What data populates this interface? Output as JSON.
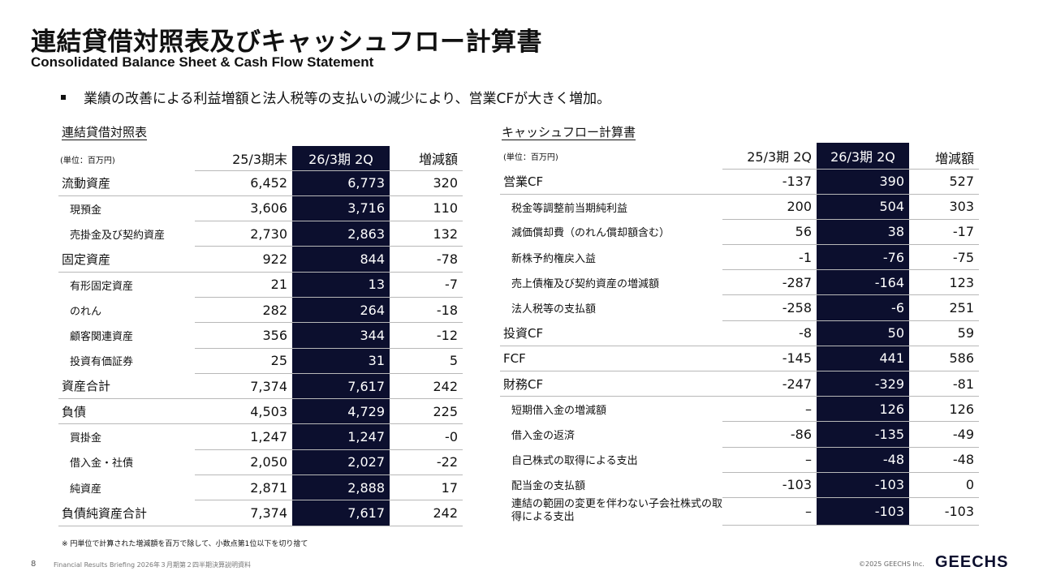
{
  "title_jp": "連結貸借対照表及びキャッシュフロー計算書",
  "title_en": "Consolidated Balance Sheet & Cash Flow Statement",
  "bullet": "業績の改善による利益増額と法人税等の支払いの減少により、営業CFが大きく増加。",
  "bs": {
    "title": "連結貸借対照表",
    "unit": "(単位：百万円)",
    "headers": [
      "25/3期末",
      "26/3期 2Q",
      "増減額"
    ],
    "rows": [
      {
        "label": "流動資産",
        "indent": false,
        "values": [
          "6,452",
          "6,773",
          "320"
        ]
      },
      {
        "label": "現預金",
        "indent": true,
        "values": [
          "3,606",
          "3,716",
          "110"
        ]
      },
      {
        "label": "売掛金及び契約資産",
        "indent": true,
        "values": [
          "2,730",
          "2,863",
          "132"
        ]
      },
      {
        "label": "固定資産",
        "indent": false,
        "values": [
          "922",
          "844",
          "-78"
        ]
      },
      {
        "label": "有形固定資産",
        "indent": true,
        "values": [
          "21",
          "13",
          "-7"
        ]
      },
      {
        "label": "のれん",
        "indent": true,
        "values": [
          "282",
          "264",
          "-18"
        ]
      },
      {
        "label": "顧客関連資産",
        "indent": true,
        "values": [
          "356",
          "344",
          "-12"
        ]
      },
      {
        "label": "投資有価証券",
        "indent": true,
        "values": [
          "25",
          "31",
          "5"
        ]
      },
      {
        "label": "資産合計",
        "indent": false,
        "values": [
          "7,374",
          "7,617",
          "242"
        ]
      },
      {
        "label": "負債",
        "indent": false,
        "values": [
          "4,503",
          "4,729",
          "225"
        ]
      },
      {
        "label": "買掛金",
        "indent": true,
        "values": [
          "1,247",
          "1,247",
          "-0"
        ]
      },
      {
        "label": "借入金・社債",
        "indent": true,
        "values": [
          "2,050",
          "2,027",
          "-22"
        ]
      },
      {
        "label": "純資産",
        "indent": true,
        "values": [
          "2,871",
          "2,888",
          "17"
        ]
      },
      {
        "label": "負債純資産合計",
        "indent": false,
        "values": [
          "7,374",
          "7,617",
          "242"
        ]
      }
    ]
  },
  "cf": {
    "title": "キャッシュフロー計算書",
    "unit": "(単位：百万円)",
    "headers": [
      "25/3期 2Q",
      "26/3期 2Q",
      "増減額"
    ],
    "rows": [
      {
        "label": "営業CF",
        "indent": false,
        "values": [
          "-137",
          "390",
          "527"
        ]
      },
      {
        "label": "税金等調整前当期純利益",
        "indent": true,
        "values": [
          "200",
          "504",
          "303"
        ]
      },
      {
        "label": "減価償却費（のれん償却額含む）",
        "indent": true,
        "values": [
          "56",
          "38",
          "-17"
        ]
      },
      {
        "label": "新株予約権戻入益",
        "indent": true,
        "values": [
          "-1",
          "-76",
          "-75"
        ]
      },
      {
        "label": "売上債権及び契約資産の増減額",
        "indent": true,
        "values": [
          "-287",
          "-164",
          "123"
        ]
      },
      {
        "label": "法人税等の支払額",
        "indent": true,
        "values": [
          "-258",
          "-6",
          "251"
        ]
      },
      {
        "label": "投資CF",
        "indent": false,
        "values": [
          "-8",
          "50",
          "59"
        ]
      },
      {
        "label": "FCF",
        "indent": false,
        "values": [
          "-145",
          "441",
          "586"
        ]
      },
      {
        "label": "財務CF",
        "indent": false,
        "values": [
          "-247",
          "-329",
          "-81"
        ]
      },
      {
        "label": "短期借入金の増減額",
        "indent": true,
        "values": [
          "–",
          "126",
          "126"
        ]
      },
      {
        "label": "借入金の返済",
        "indent": true,
        "values": [
          "-86",
          "-135",
          "-49"
        ]
      },
      {
        "label": "自己株式の取得による支出",
        "indent": true,
        "values": [
          "–",
          "-48",
          "-48"
        ]
      },
      {
        "label": "配当金の支払額",
        "indent": true,
        "values": [
          "-103",
          "-103",
          "0"
        ]
      },
      {
        "label": "連結の範囲の変更を伴わない子会社株式の取得による支出",
        "indent": true,
        "values": [
          "–",
          "-103",
          "-103"
        ]
      }
    ]
  },
  "note": "※ 円単位で計算された増減額を百万で除して、小数点第1位以下を切り捨て",
  "footer": {
    "page": "8",
    "text": "Financial Results Briefing 2026年３月期第２四半期決算説明資料",
    "copyright": "©2025 GEECHS Inc.",
    "logo": "GEECHS"
  },
  "colors": {
    "dark_column": "#0c0f2e",
    "rule": "#b8b8b8"
  }
}
